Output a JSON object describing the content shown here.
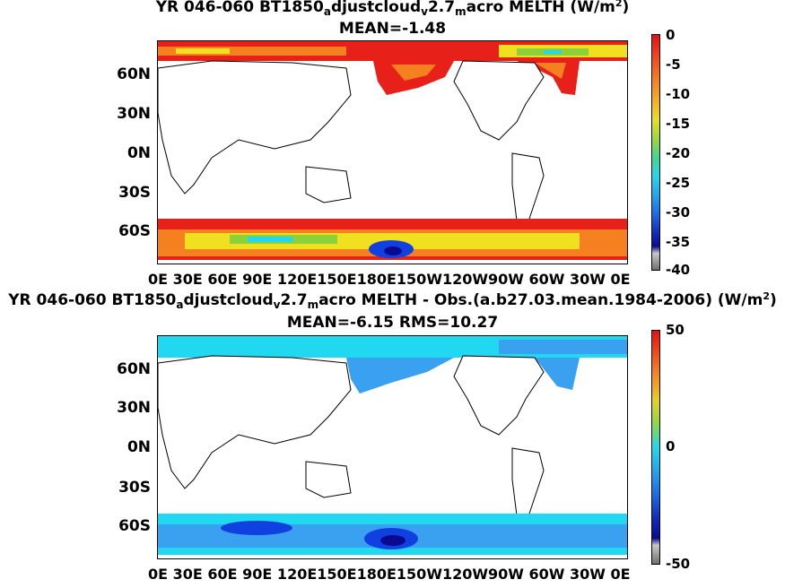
{
  "panel1": {
    "title_line1_a": "YR 046-060 BT1850",
    "title_line1_sub1": "a",
    "title_line1_b": "djustcloud",
    "title_line1_sub2": "v",
    "title_line1_c": "2.7",
    "title_line1_sub3": "m",
    "title_line1_d": "acro  MELTH (W/m",
    "title_line1_sup": "2",
    "title_line1_e": ")",
    "title_line2": "MEAN=-1.48",
    "lat_labels": [
      "60N",
      "30N",
      "0N",
      "30S",
      "60S"
    ],
    "lon_labels": "0E  30E  60E  90E 120E150E180E150W120W90W 60W 30W  0E",
    "colorbar_ticks": [
      "0",
      "-5",
      "-10",
      "-15",
      "-20",
      "-25",
      "-30",
      "-35",
      "-40"
    ]
  },
  "panel2": {
    "title_line1_a": "YR 046-060 BT1850",
    "title_line1_sub1": "a",
    "title_line1_b": "djustcloud",
    "title_line1_sub2": "v",
    "title_line1_c": "2.7",
    "title_line1_sub3": "m",
    "title_line1_d": "acro MELTH - Obs.(a.b27.03.mean.1984-2006) (W/m",
    "title_line1_sup": "2",
    "title_line1_e": ")",
    "title_line2": "MEAN=-6.15 RMS=10.27",
    "lat_labels": [
      "60N",
      "30N",
      "0N",
      "30S",
      "60S"
    ],
    "lon_labels": "0E  30E  60E  90E 120E150E180E150W120W90W 60W 30W  0E",
    "colorbar_ticks": [
      "50",
      "0",
      "-50"
    ]
  },
  "colors": {
    "red": "#e8201a",
    "orange": "#f5801f",
    "yellow": "#f0e020",
    "green": "#8cd03a",
    "cyan": "#20d8f0",
    "lightblue": "#3aa0f0",
    "blue": "#1040e0",
    "darkblue": "#0a0a90"
  }
}
